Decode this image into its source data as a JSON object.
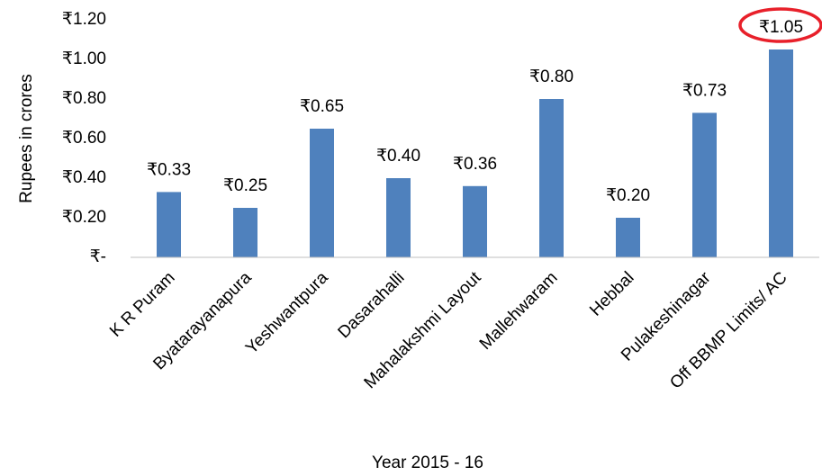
{
  "chart_data": {
    "type": "bar",
    "x_label": "Year 2015 - 16",
    "y_label": "Rupees in crores",
    "categories": [
      "K R Puram",
      "Byatarayanapura",
      "Yeshwantpura",
      "Dasarahalli",
      "Mahalakshmi Layout",
      "Mallehwaram",
      "Hebbal",
      "Pulakeshinagar",
      "Off BBMP Limits/ AC"
    ],
    "values": [
      0.33,
      0.25,
      0.65,
      0.4,
      0.36,
      0.8,
      0.2,
      0.73,
      1.05
    ],
    "value_labels": [
      "₹0.33",
      "₹0.25",
      "₹0.65",
      "₹0.40",
      "₹0.36",
      "₹0.80",
      "₹0.20",
      "₹0.73",
      "₹1.05"
    ],
    "color": "#4f81bd",
    "ylim": [
      0,
      1.2
    ],
    "yticks": [
      {
        "value": 0,
        "label": "₹-"
      },
      {
        "value": 0.2,
        "label": "₹0.20"
      },
      {
        "value": 0.4,
        "label": "₹0.40"
      },
      {
        "value": 0.6,
        "label": "₹0.60"
      },
      {
        "value": 0.8,
        "label": "₹0.80"
      },
      {
        "value": 1.0,
        "label": "₹1.00"
      },
      {
        "value": 1.2,
        "label": "₹1.20"
      }
    ],
    "grid": false
  }
}
